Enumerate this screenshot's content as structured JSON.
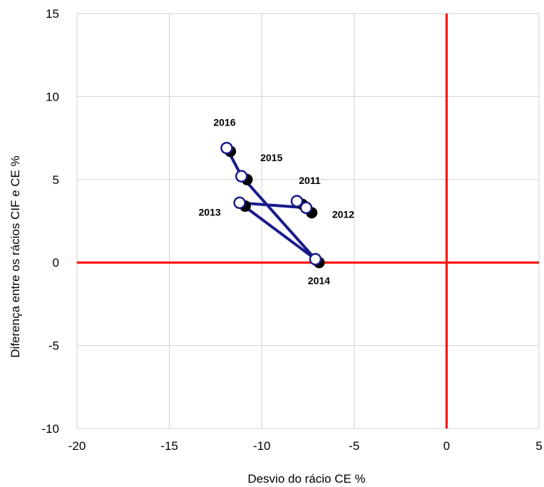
{
  "chart_data": {
    "type": "scatter",
    "title": "",
    "xlabel": "Desvio do rácio CE %",
    "ylabel": "Diferença entre os rácios CIF e CE %",
    "xlim": [
      -20,
      5
    ],
    "ylim": [
      -10,
      15
    ],
    "x_ticks": [
      "-20",
      "-15",
      "-10",
      "-5",
      "0",
      "5"
    ],
    "y_ticks": [
      "-10",
      "-5",
      "0",
      "5",
      "10",
      "15"
    ],
    "grid": true,
    "reference_lines": {
      "x": 0,
      "y": 0,
      "color": "#ff0000"
    },
    "series": [
      {
        "marker": "open-circle",
        "connected": true,
        "line_color": "#1a1a8c",
        "points": [
          {
            "label": "2011",
            "x": -8.1,
            "y": 3.7
          },
          {
            "label": "2012",
            "x": -7.6,
            "y": 3.3
          },
          {
            "label": "2013",
            "x": -11.2,
            "y": 3.6
          },
          {
            "label": "2014",
            "x": -7.1,
            "y": 0.2
          },
          {
            "label": "2015",
            "x": -11.1,
            "y": 5.2
          },
          {
            "label": "2016",
            "x": -11.9,
            "y": 6.9
          }
        ]
      },
      {
        "marker": "filled-circle",
        "connected": false,
        "color": "#000000",
        "points": [
          {
            "x": -7.8,
            "y": 3.5
          },
          {
            "x": -7.3,
            "y": 3.0
          },
          {
            "x": -10.9,
            "y": 3.4
          },
          {
            "x": -6.9,
            "y": 0.0
          },
          {
            "x": -10.8,
            "y": 5.0
          },
          {
            "x": -11.7,
            "y": 6.7
          }
        ]
      }
    ]
  }
}
